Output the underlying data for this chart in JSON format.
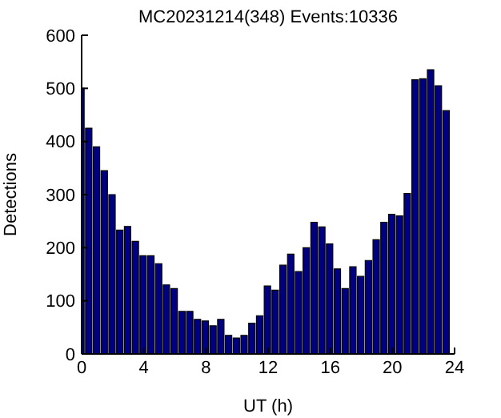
{
  "chart_data": {
    "type": "bar",
    "title": "MC20231214(348)  Events:10336",
    "xlabel": "UT (h)",
    "ylabel": "Detections",
    "x": [
      0,
      0.5,
      1,
      1.5,
      2,
      2.5,
      3,
      3.5,
      4,
      4.5,
      5,
      5.5,
      6,
      6.5,
      7,
      7.5,
      8,
      8.5,
      9,
      9.5,
      10,
      10.5,
      11,
      11.5,
      12,
      12.5,
      13,
      13.5,
      14,
      14.5,
      15,
      15.5,
      16,
      16.5,
      17,
      17.5,
      18,
      18.5,
      19,
      19.5,
      20,
      20.5,
      21,
      21.5,
      22,
      22.5,
      23,
      23.5
    ],
    "values": [
      500,
      425,
      390,
      345,
      300,
      233,
      240,
      212,
      185,
      185,
      170,
      130,
      123,
      80,
      80,
      65,
      62,
      53,
      65,
      35,
      30,
      35,
      58,
      72,
      128,
      120,
      167,
      188,
      155,
      200,
      248,
      239,
      207,
      160,
      123,
      164,
      146,
      176,
      215,
      248,
      263,
      260,
      302,
      516,
      518,
      535,
      505,
      458
    ],
    "color": "#000080",
    "xlim": [
      0,
      24
    ],
    "xticks": [
      0,
      4,
      8,
      12,
      16,
      20,
      24
    ],
    "ylim": [
      0,
      600
    ],
    "yticks": [
      0,
      100,
      200,
      300,
      400,
      500,
      600
    ],
    "grid": false,
    "legend": false
  }
}
